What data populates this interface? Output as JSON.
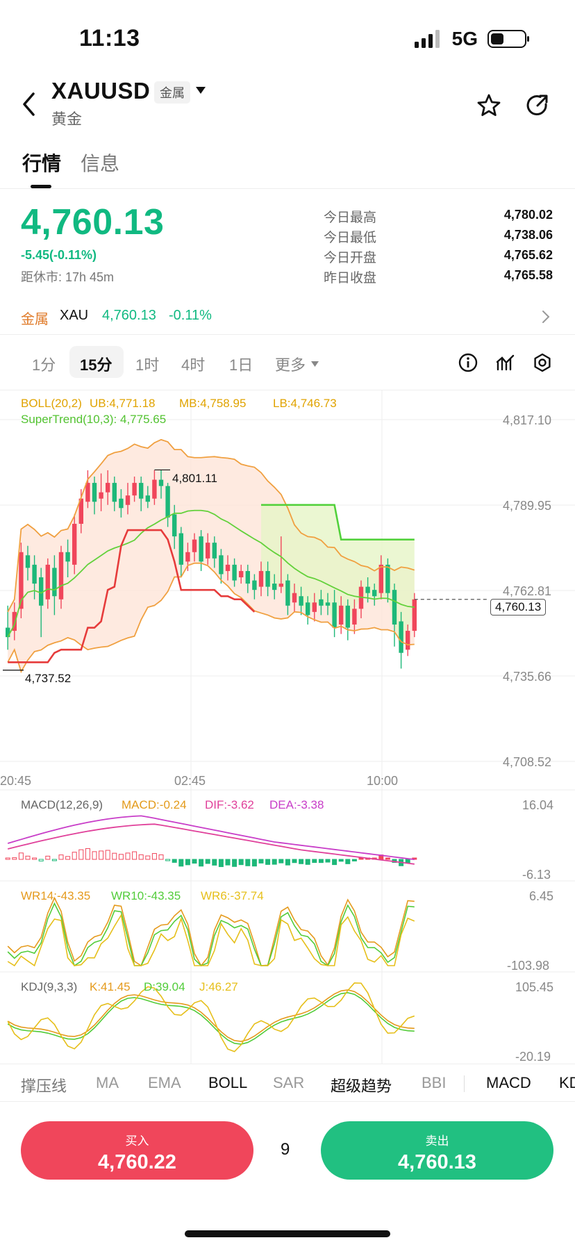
{
  "status_bar": {
    "time": "11:13",
    "network": "5G",
    "battery_level": 0.35
  },
  "header": {
    "symbol": "XAUUSD",
    "badge": "金属",
    "subtitle": "黄金",
    "icons": {
      "back": "back-chevron-icon",
      "caret": "caret-down-icon",
      "favorite": "star-icon",
      "share": "share-icon"
    }
  },
  "tabs": [
    {
      "label": "行情",
      "active": true
    },
    {
      "label": "信息",
      "active": false
    }
  ],
  "quote": {
    "price": "4,760.13",
    "change": "-5.45(-0.11%)",
    "market_close": "距休市: 17h 45m",
    "stats": [
      {
        "label": "今日最高",
        "value": "4,780.02"
      },
      {
        "label": "今日最低",
        "value": "4,738.06"
      },
      {
        "label": "今日开盘",
        "value": "4,765.62"
      },
      {
        "label": "昨日收盘",
        "value": "4,765.58"
      }
    ]
  },
  "related": {
    "category": "金属",
    "symbol": "XAU",
    "price": "4,760.13",
    "change": "-0.11%"
  },
  "timeframes": {
    "items": [
      "1分",
      "15分",
      "1时",
      "4时",
      "1日"
    ],
    "active": "15分",
    "more": "更多"
  },
  "toolbar_icons": [
    "info-icon",
    "indicator-icon",
    "settings-icon"
  ],
  "colors": {
    "up": "#f0465b",
    "down": "#1db879",
    "boll": "#f0a040",
    "supertrend": "#63d13b",
    "macd_dif": "#c83dc8",
    "macd_dea": "#d9a018",
    "kdj_k": "#e59a1c",
    "kdj_d": "#52cc3a",
    "kdj_j": "#e6bf1a"
  },
  "main_chart": {
    "legend_boll": {
      "name": "BOLL(20,2)",
      "ub": "UB:4,771.18",
      "mb": "MB:4,758.95",
      "lb": "LB:4,746.73"
    },
    "legend_st": "SuperTrend(10,3): 4,775.65",
    "y_labels": [
      "4,817.10",
      "4,789.95",
      "4,762.81",
      "4,735.66",
      "4,708.52"
    ],
    "x_labels": [
      "20:45",
      "02:45",
      "10:00"
    ],
    "high_mark": "4,801.11",
    "low_mark": "4,737.52",
    "last_price": "4,760.13"
  },
  "macd_panel": {
    "legend": {
      "name": "MACD(12,26,9)",
      "macd": "MACD:-0.24",
      "dif": "DIF:-3.62",
      "dea": "DEA:-3.38"
    },
    "y_top": "16.04",
    "y_bottom": "-6.13"
  },
  "wr_panel": {
    "legend": {
      "wr14": "WR14:-43.35",
      "wr10": "WR10:-43.35",
      "wr6": "WR6:-37.74"
    },
    "y_top": "6.45",
    "y_bottom": "-103.98"
  },
  "kdj_panel": {
    "legend": {
      "name": "KDJ(9,3,3)",
      "k": "K:41.45",
      "d": "D:39.04",
      "j": "J:46.27"
    },
    "y_top": "105.45",
    "y_bottom": "-20.19"
  },
  "chart_data": {
    "type": "candlestick",
    "y_range": [
      4708.52,
      4817.1
    ],
    "candles": [
      [
        4751,
        4748,
        4758,
        4744
      ],
      [
        4750,
        4756,
        4759,
        4747
      ],
      [
        4757,
        4775,
        4778,
        4754
      ],
      [
        4774,
        4770,
        4777,
        4766
      ],
      [
        4771,
        4765,
        4774,
        4760
      ],
      [
        4767,
        4758,
        4770,
        4748
      ],
      [
        4760,
        4771,
        4773,
        4757
      ],
      [
        4770,
        4761,
        4774,
        4755
      ],
      [
        4760,
        4775,
        4777,
        4757
      ],
      [
        4775,
        4772,
        4779,
        4767
      ],
      [
        4771,
        4784,
        4787,
        4768
      ],
      [
        4784,
        4792,
        4795,
        4781
      ],
      [
        4791,
        4797,
        4801,
        4789
      ],
      [
        4797,
        4791,
        4799,
        4787
      ],
      [
        4792,
        4794,
        4800,
        4788
      ],
      [
        4794,
        4797,
        4801,
        4790
      ],
      [
        4797,
        4791,
        4799,
        4788
      ],
      [
        4792,
        4789,
        4795,
        4786
      ],
      [
        4790,
        4793,
        4797,
        4787
      ],
      [
        4793,
        4797,
        4799,
        4791
      ],
      [
        4797,
        4792,
        4799,
        4788
      ],
      [
        4793,
        4791,
        4796,
        4789
      ],
      [
        4792,
        4798,
        4801,
        4790
      ],
      [
        4798,
        4796,
        4801,
        4792
      ],
      [
        4796,
        4786,
        4797,
        4783
      ],
      [
        4787,
        4780,
        4790,
        4776
      ],
      [
        4781,
        4771,
        4783,
        4767
      ],
      [
        4772,
        4775,
        4778,
        4769
      ],
      [
        4775,
        4779,
        4781,
        4772
      ],
      [
        4780,
        4772,
        4782,
        4769
      ],
      [
        4773,
        4778,
        4781,
        4771
      ],
      [
        4778,
        4773,
        4780,
        4770
      ],
      [
        4774,
        4768,
        4776,
        4765
      ],
      [
        4769,
        4771,
        4774,
        4766
      ],
      [
        4771,
        4766,
        4773,
        4764
      ],
      [
        4767,
        4769,
        4771,
        4765
      ],
      [
        4769,
        4765,
        4771,
        4762
      ],
      [
        4766,
        4763,
        4768,
        4760
      ],
      [
        4764,
        4769,
        4772,
        4761
      ],
      [
        4769,
        4764,
        4772,
        4761
      ],
      [
        4765,
        4763,
        4768,
        4760
      ],
      [
        4764,
        4765,
        4780,
        4762
      ],
      [
        4766,
        4758,
        4768,
        4755
      ],
      [
        4759,
        4762,
        4765,
        4756
      ],
      [
        4761,
        4758,
        4764,
        4755
      ],
      [
        4759,
        4755,
        4761,
        4752
      ],
      [
        4756,
        4759,
        4762,
        4753
      ],
      [
        4760,
        4758,
        4763,
        4755
      ],
      [
        4759,
        4758,
        4762,
        4755
      ],
      [
        4759,
        4751,
        4763,
        4748
      ],
      [
        4752,
        4758,
        4761,
        4749
      ],
      [
        4758,
        4751,
        4760,
        4747
      ],
      [
        4752,
        4757,
        4760,
        4749
      ],
      [
        4757,
        4764,
        4766,
        4754
      ],
      [
        4764,
        4762,
        4767,
        4759
      ],
      [
        4763,
        4761,
        4765,
        4758
      ],
      [
        4762,
        4771,
        4774,
        4760
      ],
      [
        4771,
        4762,
        4773,
        4759
      ],
      [
        4763,
        4752,
        4765,
        4745
      ],
      [
        4753,
        4743,
        4756,
        4738
      ],
      [
        4744,
        4750,
        4752,
        4742
      ],
      [
        4750,
        4760,
        4762,
        4748
      ]
    ],
    "highlight_high": 4801.11,
    "highlight_low": 4737.52
  }
}
